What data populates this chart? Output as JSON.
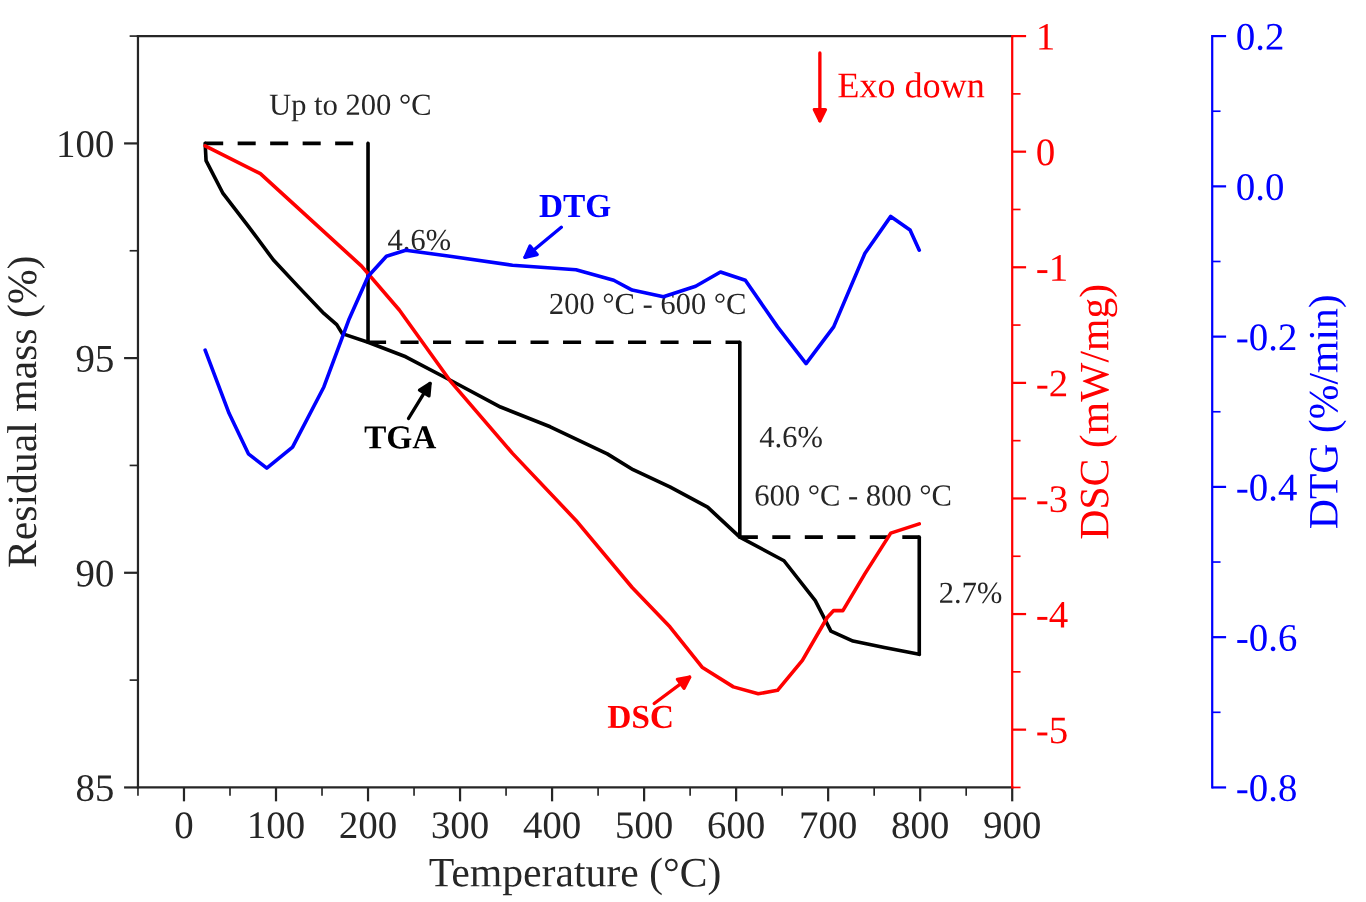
{
  "chart_data": {
    "type": "line",
    "xlabel": "Temperature (°C)",
    "ylabel": "Residual mass (%)",
    "y2label": "DSC (mW/mg)",
    "y3label": "DTG (%/min)",
    "xlim": [
      -50,
      900
    ],
    "xticks": [
      0,
      100,
      200,
      300,
      400,
      500,
      600,
      700,
      800,
      900
    ],
    "ylim": [
      85,
      102.5
    ],
    "yticks": [
      85,
      90,
      95,
      100
    ],
    "y2lim": [
      -5.5,
      1
    ],
    "y2ticks": [
      {
        "value": -5,
        "label": "-5"
      },
      {
        "value": -4,
        "label": "-4"
      },
      {
        "value": -3,
        "label": "-3"
      },
      {
        "value": -2,
        "label": "-2"
      },
      {
        "value": -1,
        "label": "-1"
      },
      0,
      1
    ],
    "y3lim": [
      -0.8,
      0.2
    ],
    "y3ticks": [
      {
        "value": -0.8,
        "label": "-0.8"
      },
      {
        "value": -0.6,
        "label": "-0.6"
      },
      {
        "value": -0.4,
        "label": "-0.4"
      },
      {
        "value": -0.2,
        "label": "-0.2"
      },
      {
        "value": 0.0,
        "label": "0.0"
      },
      0.2
    ],
    "grid": false,
    "series": [
      {
        "color": "#000000",
        "x": [
          23,
          24,
          42,
          70,
          97,
          124,
          152,
          166,
          172,
          200,
          241,
          289,
          344,
          398,
          460,
          488,
          528,
          569,
          604,
          652,
          686,
          703,
          727,
          761,
          799
        ],
        "values": [
          100,
          99.6,
          98.85,
          98.07,
          97.29,
          96.67,
          96.04,
          95.78,
          95.57,
          95.37,
          95.03,
          94.49,
          93.86,
          93.4,
          92.77,
          92.4,
          92.0,
          91.53,
          90.83,
          90.28,
          89.35,
          88.64,
          88.41,
          88.26,
          88.1
        ]
      },
      {
        "color": "#ff0000",
        "axis": "y2",
        "x": [
          23,
          83,
          138,
          193,
          234,
          289,
          357,
          426,
          487,
          528,
          563,
          597,
          624,
          645,
          672,
          699,
          706,
          716,
          740,
          768,
          799
        ],
        "values": [
          0.05,
          -0.19,
          -0.59,
          -0.99,
          -1.37,
          -1.98,
          -2.61,
          -3.19,
          -3.77,
          -4.11,
          -4.46,
          -4.63,
          -4.69,
          -4.66,
          -4.4,
          -4.03,
          -3.97,
          -3.97,
          -3.65,
          -3.3,
          -3.22
        ]
      },
      {
        "color": "#0000ff",
        "axis": "y3",
        "x": [
          23,
          49,
          70,
          90,
          118,
          152,
          179,
          200,
          220,
          241,
          289,
          357,
          426,
          467,
          487,
          521,
          556,
          583,
          610,
          645,
          676,
          706,
          740,
          768,
          789,
          799
        ],
        "values": [
          -0.218,
          -0.302,
          -0.356,
          -0.375,
          -0.347,
          -0.267,
          -0.178,
          -0.12,
          -0.093,
          -0.085,
          -0.093,
          -0.105,
          -0.111,
          -0.125,
          -0.138,
          -0.147,
          -0.133,
          -0.114,
          -0.125,
          -0.187,
          -0.236,
          -0.187,
          -0.089,
          -0.04,
          -0.058,
          -0.085
        ]
      },
      {
        "color": "#000000",
        "line_style": "dashed",
        "x": [
          23,
          200
        ],
        "values": [
          100,
          100
        ]
      },
      {
        "color": "#000000",
        "line_style": "dashed",
        "x": [
          200,
          604
        ],
        "values": [
          95.37,
          95.37
        ]
      },
      {
        "color": "#000000",
        "line_style": "dashed",
        "x": [
          604,
          799
        ],
        "values": [
          90.83,
          90.83
        ]
      },
      {
        "color": "#000000",
        "x": [
          200,
          200
        ],
        "values": [
          100,
          95.37
        ]
      },
      {
        "color": "#000000",
        "x": [
          604,
          604
        ],
        "values": [
          95.37,
          90.83
        ]
      },
      {
        "color": "#000000",
        "x": [
          799,
          799
        ],
        "values": [
          90.83,
          88.1
        ]
      }
    ],
    "annotations": [
      "Up to 200 °C",
      {
        "text": "4.6%",
        "x": 200,
        "y": 97.69
      },
      "200 °C - 600 °C",
      {
        "text": "4.6%",
        "x": 604,
        "y": 93.1
      },
      "600 °C - 800 °C",
      {
        "text": "2.7%",
        "x": 799,
        "y": 89.47
      },
      "TGA",
      "DTG",
      "DSC",
      "Exo down"
    ]
  }
}
